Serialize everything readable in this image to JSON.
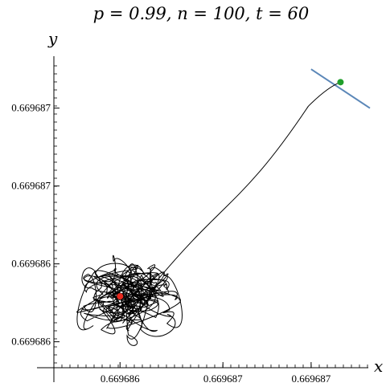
{
  "chart_data": {
    "type": "line",
    "title": "p = 0.99, n = 100, t = 60",
    "xlabel": "x",
    "ylabel": "y",
    "x_ticks": [
      {
        "value": 0.669686,
        "label": "0.669686"
      },
      {
        "value": 0.6696867,
        "label": "0.669687"
      },
      {
        "value": 0.6696873,
        "label": "0.669687"
      }
    ],
    "y_ticks": [
      {
        "value": 0.6696874,
        "label": "0.669687"
      },
      {
        "value": 0.6696868,
        "label": "0.669687"
      },
      {
        "value": 0.6696862,
        "label": "0.669686"
      },
      {
        "value": 0.6696856,
        "label": "0.669686"
      }
    ],
    "xlim": [
      0.66968555,
      0.6696877
    ],
    "ylim": [
      0.6696854,
      0.6696878
    ],
    "trajectory_end": {
      "x": 0.6696875,
      "y": 0.6696876
    },
    "start_point": {
      "x": 0.669686,
      "y": 0.66968595,
      "color": "#e8281e"
    },
    "end_point": {
      "x": 0.6696875,
      "y": 0.6696876,
      "color": "#1f9e2a"
    },
    "boundary_line": {
      "x1": 0.6696873,
      "y1": 0.6696877,
      "x2": 0.6696877,
      "y2": 0.6696874,
      "color": "#5b87b8"
    },
    "path_color": "#000000"
  }
}
